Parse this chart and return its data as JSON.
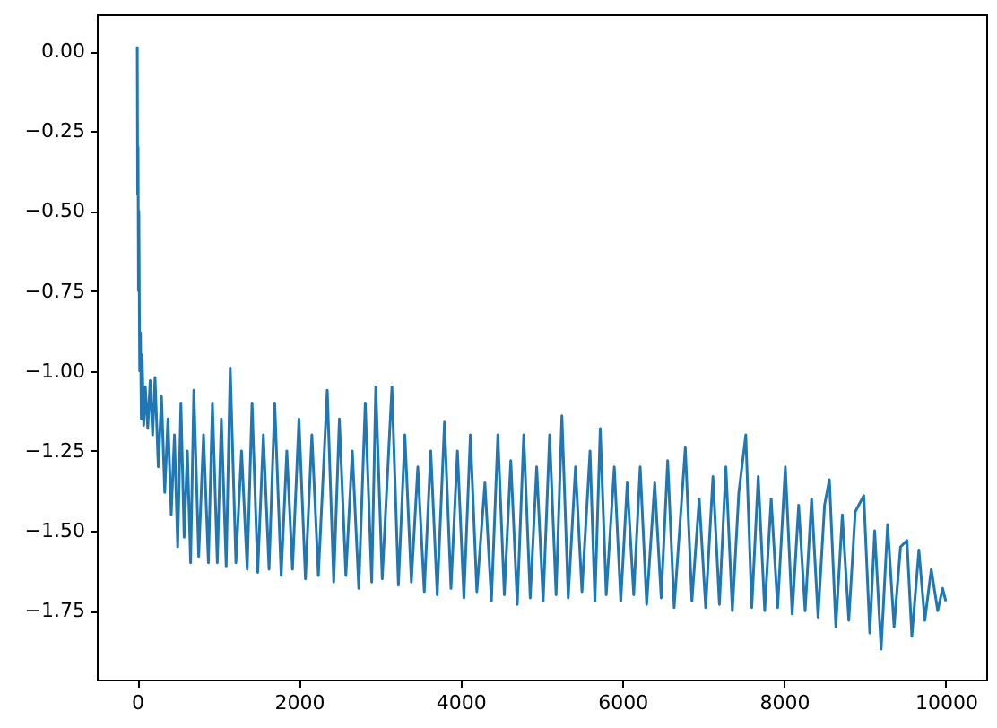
{
  "chart_data": {
    "type": "line",
    "xlim": [
      -500,
      10500
    ],
    "ylim": [
      -1.965,
      0.115
    ],
    "xticks": [
      0,
      2000,
      4000,
      6000,
      8000,
      10000
    ],
    "yticks": [
      {
        "value": 0,
        "label": "0.00"
      },
      {
        "value": -0.25,
        "label": "−0.25"
      },
      {
        "value": -0.5,
        "label": "−0.50"
      },
      {
        "value": -0.75,
        "label": "−0.75"
      },
      {
        "value": -1,
        "label": "−1.00"
      },
      {
        "value": -1.25,
        "label": "−1.25"
      },
      {
        "value": -1.5,
        "label": "−1.50"
      },
      {
        "value": -1.75,
        "label": "−1.75"
      }
    ],
    "grid": false,
    "x": [
      0,
      5,
      10,
      15,
      20,
      30,
      40,
      50,
      60,
      80,
      100,
      130,
      160,
      190,
      220,
      260,
      300,
      340,
      380,
      420,
      460,
      500,
      540,
      580,
      620,
      660,
      700,
      760,
      820,
      880,
      930,
      990,
      1040,
      1100,
      1150,
      1220,
      1290,
      1360,
      1420,
      1490,
      1560,
      1630,
      1700,
      1780,
      1850,
      1920,
      2000,
      2080,
      2160,
      2240,
      2350,
      2430,
      2500,
      2580,
      2660,
      2740,
      2820,
      2900,
      2950,
      3030,
      3150,
      3230,
      3310,
      3390,
      3470,
      3550,
      3630,
      3710,
      3800,
      3880,
      3960,
      4040,
      4120,
      4200,
      4300,
      4380,
      4460,
      4540,
      4620,
      4700,
      4780,
      4860,
      4940,
      5020,
      5100,
      5180,
      5252,
      5330,
      5420,
      5500,
      5600,
      5660,
      5726,
      5800,
      5900,
      5980,
      6060,
      6140,
      6220,
      6300,
      6400,
      6480,
      6560,
      6640,
      6778,
      6860,
      6950,
      7030,
      7120,
      7200,
      7280,
      7360,
      7440,
      7526,
      7600,
      7680,
      7760,
      7840,
      7920,
      8015,
      8100,
      8180,
      8260,
      8340,
      8420,
      8500,
      8560,
      8640,
      8720,
      8800,
      8880,
      8985,
      9060,
      9120,
      9200,
      9280,
      9360,
      9440,
      9519,
      9580,
      9667,
      9740,
      9820,
      9900,
      9960,
      10000
    ],
    "series": [
      {
        "color": "#1f77b4",
        "values": [
          0.015,
          -0.45,
          -0.3,
          -0.75,
          -0.5,
          -1.0,
          -0.88,
          -1.15,
          -0.95,
          -1.17,
          -1.05,
          -1.18,
          -1.03,
          -1.2,
          -1.02,
          -1.3,
          -1.08,
          -1.38,
          -1.15,
          -1.45,
          -1.2,
          -1.55,
          -1.1,
          -1.52,
          -1.25,
          -1.6,
          -1.06,
          -1.58,
          -1.2,
          -1.6,
          -1.1,
          -1.6,
          -1.15,
          -1.61,
          -0.99,
          -1.6,
          -1.25,
          -1.62,
          -1.1,
          -1.63,
          -1.2,
          -1.62,
          -1.1,
          -1.64,
          -1.25,
          -1.62,
          -1.15,
          -1.65,
          -1.2,
          -1.64,
          -1.06,
          -1.66,
          -1.15,
          -1.64,
          -1.25,
          -1.68,
          -1.1,
          -1.66,
          -1.05,
          -1.65,
          -1.05,
          -1.67,
          -1.2,
          -1.66,
          -1.3,
          -1.69,
          -1.25,
          -1.7,
          -1.16,
          -1.68,
          -1.25,
          -1.71,
          -1.2,
          -1.69,
          -1.35,
          -1.72,
          -1.2,
          -1.7,
          -1.28,
          -1.73,
          -1.2,
          -1.71,
          -1.3,
          -1.72,
          -1.2,
          -1.7,
          -1.14,
          -1.71,
          -1.3,
          -1.69,
          -1.25,
          -1.72,
          -1.18,
          -1.7,
          -1.3,
          -1.72,
          -1.35,
          -1.7,
          -1.3,
          -1.73,
          -1.35,
          -1.71,
          -1.28,
          -1.74,
          -1.24,
          -1.72,
          -1.4,
          -1.74,
          -1.33,
          -1.73,
          -1.3,
          -1.75,
          -1.38,
          -1.2,
          -1.74,
          -1.33,
          -1.75,
          -1.4,
          -1.74,
          -1.3,
          -1.76,
          -1.42,
          -1.75,
          -1.4,
          -1.77,
          -1.42,
          -1.34,
          -1.8,
          -1.45,
          -1.78,
          -1.44,
          -1.39,
          -1.82,
          -1.5,
          -1.87,
          -1.48,
          -1.8,
          -1.55,
          -1.53,
          -1.83,
          -1.56,
          -1.78,
          -1.62,
          -1.75,
          -1.68,
          -1.72
        ]
      }
    ]
  }
}
